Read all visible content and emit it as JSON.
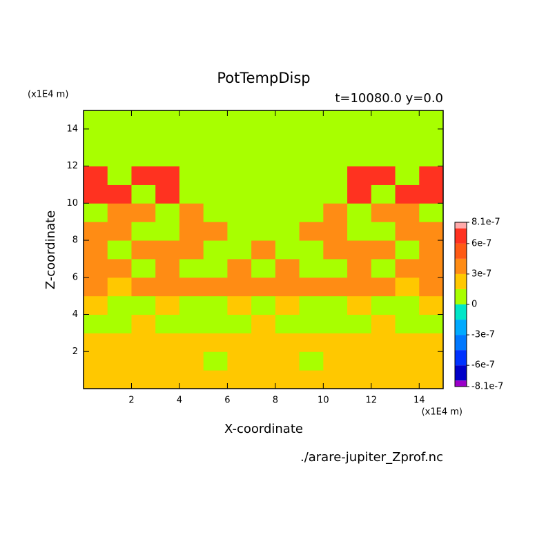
{
  "chart_data": {
    "type": "contour",
    "title": "PotTempDisp",
    "subtitle": "t=10080.0 y=0.0",
    "x_label": "X-coordinate",
    "y_label": "Z-coordinate",
    "x_unit": "(x1E4 m)",
    "y_unit": "(x1E4 m)",
    "source": "./arare-jupiter_Zprof.nc",
    "xlim": [
      0,
      15
    ],
    "ylim": [
      0,
      15
    ],
    "xticks": [
      2,
      4,
      6,
      8,
      10,
      12,
      14
    ],
    "yticks": [
      2,
      4,
      6,
      8,
      10,
      12,
      14
    ],
    "x": [
      0.5,
      1.5,
      2.5,
      3.5,
      4.5,
      5.5,
      6.5,
      7.5,
      8.5,
      9.5,
      10.5,
      11.5,
      12.5,
      13.5,
      14.5
    ],
    "y": [
      0.5,
      1.5,
      2.5,
      3.5,
      4.5,
      5.5,
      6.5,
      7.5,
      8.5,
      9.5,
      10.5,
      11.5,
      12.5,
      13.5,
      14.5
    ],
    "z": [
      [
        2e-07,
        2e-07,
        2e-07,
        2e-07,
        2e-07,
        2e-07,
        2e-07,
        2e-07,
        2e-07,
        2e-07,
        2e-07,
        2e-07,
        2e-07,
        2e-07,
        2e-07
      ],
      [
        2e-07,
        2e-07,
        2e-07,
        2e-07,
        2e-07,
        1e-07,
        2e-07,
        2e-07,
        2e-07,
        1e-07,
        2e-07,
        2e-07,
        2e-07,
        2e-07,
        2e-07
      ],
      [
        2e-07,
        2e-07,
        2e-07,
        2e-07,
        2e-07,
        2e-07,
        2e-07,
        2e-07,
        2e-07,
        2e-07,
        2e-07,
        2e-07,
        2e-07,
        2e-07,
        2e-07
      ],
      [
        1e-07,
        1e-07,
        2e-07,
        1e-07,
        1e-07,
        1e-07,
        1e-07,
        2e-07,
        1e-07,
        1e-07,
        1e-07,
        1e-07,
        2e-07,
        1e-07,
        1e-07
      ],
      [
        2e-07,
        1e-07,
        1e-07,
        2e-07,
        1e-07,
        1e-07,
        2e-07,
        1e-07,
        2e-07,
        1e-07,
        1e-07,
        2e-07,
        1e-07,
        1e-07,
        2e-07
      ],
      [
        4e-07,
        2e-07,
        4e-07,
        4e-07,
        4e-07,
        4e-07,
        4e-07,
        4e-07,
        4e-07,
        4e-07,
        4e-07,
        4e-07,
        4e-07,
        2e-07,
        4e-07
      ],
      [
        4e-07,
        4e-07,
        1e-07,
        4e-07,
        1e-07,
        1e-07,
        4e-07,
        1e-07,
        4e-07,
        1e-07,
        1e-07,
        4e-07,
        1e-07,
        4e-07,
        4e-07
      ],
      [
        4e-07,
        1e-07,
        4e-07,
        4e-07,
        4e-07,
        1e-07,
        1e-07,
        4e-07,
        1e-07,
        1e-07,
        4e-07,
        4e-07,
        4e-07,
        1e-07,
        4e-07
      ],
      [
        4e-07,
        4e-07,
        1e-07,
        1e-07,
        4e-07,
        4e-07,
        1e-07,
        1e-07,
        1e-07,
        4e-07,
        4e-07,
        1e-07,
        1e-07,
        4e-07,
        4e-07
      ],
      [
        1e-07,
        4e-07,
        4e-07,
        1e-07,
        4e-07,
        1e-07,
        1e-07,
        1e-07,
        1e-07,
        1e-07,
        4e-07,
        1e-07,
        4e-07,
        4e-07,
        1e-07
      ],
      [
        6.5e-07,
        6.5e-07,
        1e-07,
        6.5e-07,
        1e-07,
        1e-07,
        1e-07,
        1e-07,
        1e-07,
        1e-07,
        1e-07,
        6.5e-07,
        1e-07,
        6.5e-07,
        6.5e-07
      ],
      [
        6.5e-07,
        1e-07,
        6.5e-07,
        6.5e-07,
        1e-07,
        1e-07,
        1e-07,
        1e-07,
        1e-07,
        1e-07,
        1e-07,
        6.5e-07,
        6.5e-07,
        1e-07,
        6.5e-07
      ],
      [
        1e-07,
        1e-07,
        1e-07,
        1e-07,
        1e-07,
        1e-07,
        1e-07,
        1e-07,
        1e-07,
        1e-07,
        1e-07,
        1e-07,
        1e-07,
        1e-07,
        1e-07
      ],
      [
        1e-07,
        1e-07,
        1e-07,
        1e-07,
        1e-07,
        1e-07,
        1e-07,
        1e-07,
        1e-07,
        1e-07,
        1e-07,
        1e-07,
        1e-07,
        1e-07,
        1e-07
      ],
      [
        1e-07,
        1e-07,
        1e-07,
        1e-07,
        1e-07,
        1e-07,
        1e-07,
        1e-07,
        1e-07,
        1e-07,
        1e-07,
        1e-07,
        1e-07,
        1e-07,
        1e-07
      ]
    ],
    "levels": [
      -8.1e-07,
      -7.5e-07,
      -6e-07,
      -4.5e-07,
      -3e-07,
      -1.5e-07,
      0,
      1.5e-07,
      3e-07,
      4.5e-07,
      6e-07,
      7.5e-07,
      8.1e-07
    ],
    "colors": [
      "#9a00c8",
      "#0000c8",
      "#0032ff",
      "#0078ff",
      "#00aaff",
      "#00e6c8",
      "#a8ff00",
      "#ffc800",
      "#ff8c14",
      "#ff5a14",
      "#ff3220",
      "#ffaaaa"
    ],
    "cticks": [
      -8.1e-07,
      -6e-07,
      -3e-07,
      0,
      3e-07,
      6e-07,
      8.1e-07
    ]
  }
}
